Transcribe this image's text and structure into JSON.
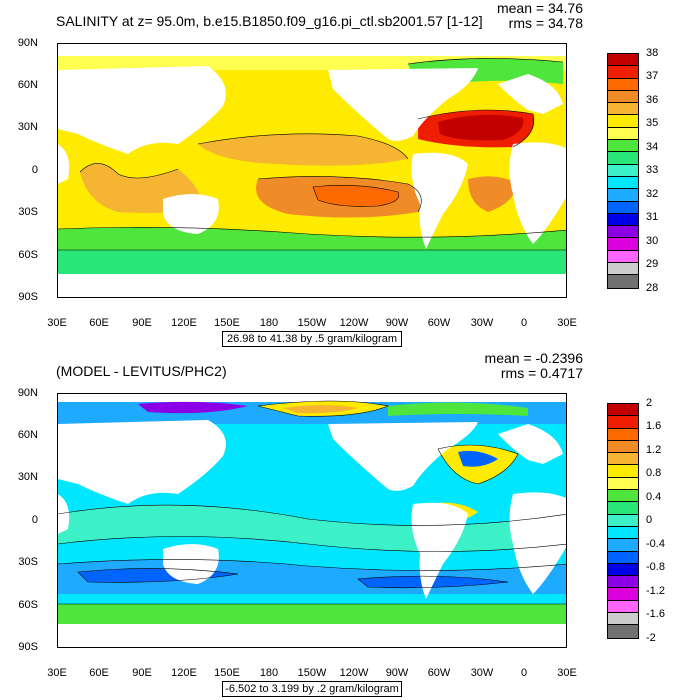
{
  "top": {
    "title": "SALINITY at z=  95.0m, b.e15.B1850.f09_g16.pi_ctl.sb2001.57 [1-12]",
    "mean": "mean = 34.76",
    "rms": "rms = 34.78",
    "range_label": "26.98 to 41.38 by .5 gram/kilogram",
    "legend_labels": [
      "38",
      "37",
      "36",
      "35",
      "34",
      "33",
      "32",
      "31",
      "30",
      "29",
      "28"
    ],
    "legend_colors": [
      "#c20000",
      "#f01e00",
      "#ff6a00",
      "#f08c28",
      "#f5b432",
      "#ffeb00",
      "#ffff50",
      "#4ee63c",
      "#28e678",
      "#3cf0c8",
      "#00e6ff",
      "#1eaaff",
      "#0064ff",
      "#0000e6",
      "#8c00e6",
      "#dc00dc",
      "#ff64ff",
      "#cccccc",
      "#707070"
    ]
  },
  "bottom": {
    "title": "(MODEL - LEVITUS/PHC2)",
    "mean": "mean = -0.2396",
    "rms": "rms = 0.4717",
    "range_label": "-6.502 to 3.199 by .2 gram/kilogram",
    "legend_labels": [
      "2",
      "1.6",
      "1.2",
      "0.8",
      "0.4",
      "0",
      "-0.4",
      "-0.8",
      "-1.2",
      "-1.6",
      "-2"
    ],
    "legend_colors": [
      "#c20000",
      "#f01e00",
      "#ff6a00",
      "#f08c28",
      "#f5b432",
      "#ffeb00",
      "#ffff50",
      "#4ee63c",
      "#28e678",
      "#3cf0c8",
      "#00e6ff",
      "#1eaaff",
      "#0064ff",
      "#0000e6",
      "#8c00e6",
      "#dc00dc",
      "#ff64ff",
      "#cccccc",
      "#707070"
    ]
  },
  "axes": {
    "lat_labels": [
      "90N",
      "60N",
      "30N",
      "0",
      "30S",
      "60S",
      "90S"
    ],
    "lon_labels": [
      "30E",
      "60E",
      "90E",
      "120E",
      "150E",
      "180",
      "150W",
      "120W",
      "90W",
      "60W",
      "30W",
      "0",
      "30E"
    ]
  }
}
